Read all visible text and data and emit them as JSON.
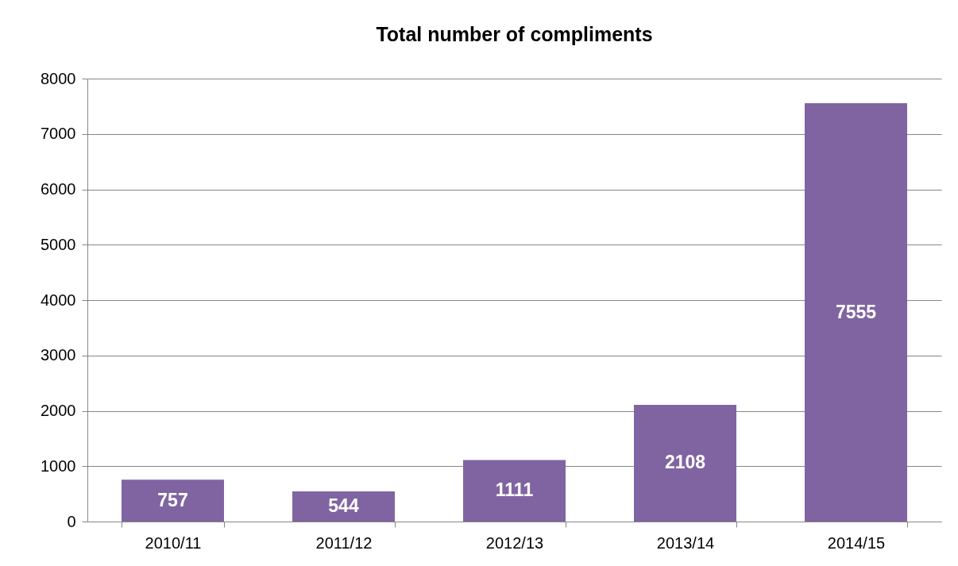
{
  "chart_data": {
    "type": "bar",
    "title": "Total number of compliments",
    "categories": [
      "2010/11",
      "2011/12",
      "2012/13",
      "2013/14",
      "2014/15"
    ],
    "values": [
      757,
      544,
      1111,
      2108,
      7555
    ],
    "color": "#8064a2",
    "ylim": [
      0,
      8000
    ],
    "yticks": [
      0,
      1000,
      2000,
      3000,
      4000,
      5000,
      6000,
      7000,
      8000
    ],
    "grid": "y",
    "data_labels": true
  }
}
